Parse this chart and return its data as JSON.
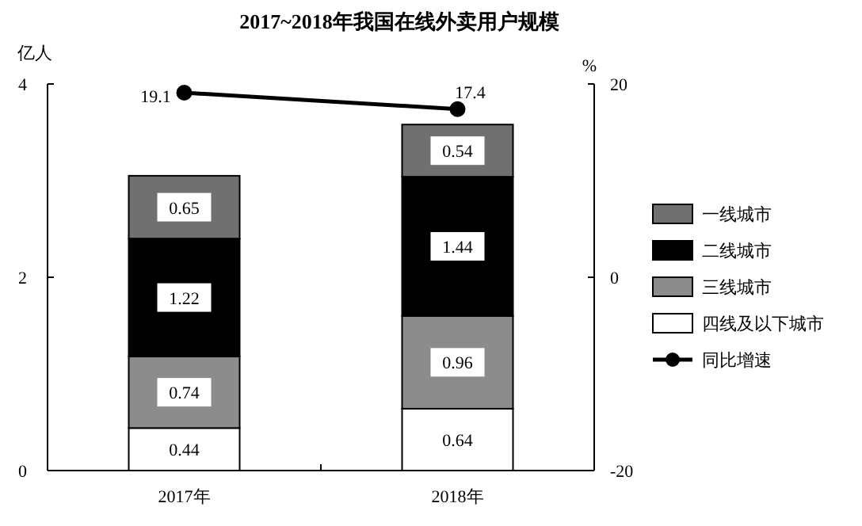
{
  "chart_data": {
    "type": "bar",
    "title": "2017~2018年我国在线外卖用户规模",
    "categories": [
      "2017年",
      "2018年"
    ],
    "stacked": true,
    "ylabel": "亿人",
    "y2label": "%",
    "ylim": [
      0,
      4
    ],
    "yticks": [
      0,
      2,
      4
    ],
    "y2lim": [
      -20,
      20
    ],
    "y2ticks": [
      -20,
      0,
      20
    ],
    "data_labels": true,
    "legend": "right",
    "grid": false,
    "marker": "circle",
    "series": [
      {
        "name": "四线及以下城市",
        "color": "#ffffff",
        "values": [
          0.44,
          0.64
        ]
      },
      {
        "name": "三线城市",
        "color": "#8c8c8c",
        "values": [
          0.74,
          0.96
        ]
      },
      {
        "name": "二线城市",
        "color": "#000000",
        "values": [
          1.22,
          1.44
        ]
      },
      {
        "name": "一线城市",
        "color": "#707070",
        "values": [
          0.65,
          0.54
        ]
      },
      {
        "name": "同比增速",
        "type": "line",
        "axis": "y2",
        "color": "#000000",
        "values": [
          19.1,
          17.4
        ]
      }
    ]
  }
}
